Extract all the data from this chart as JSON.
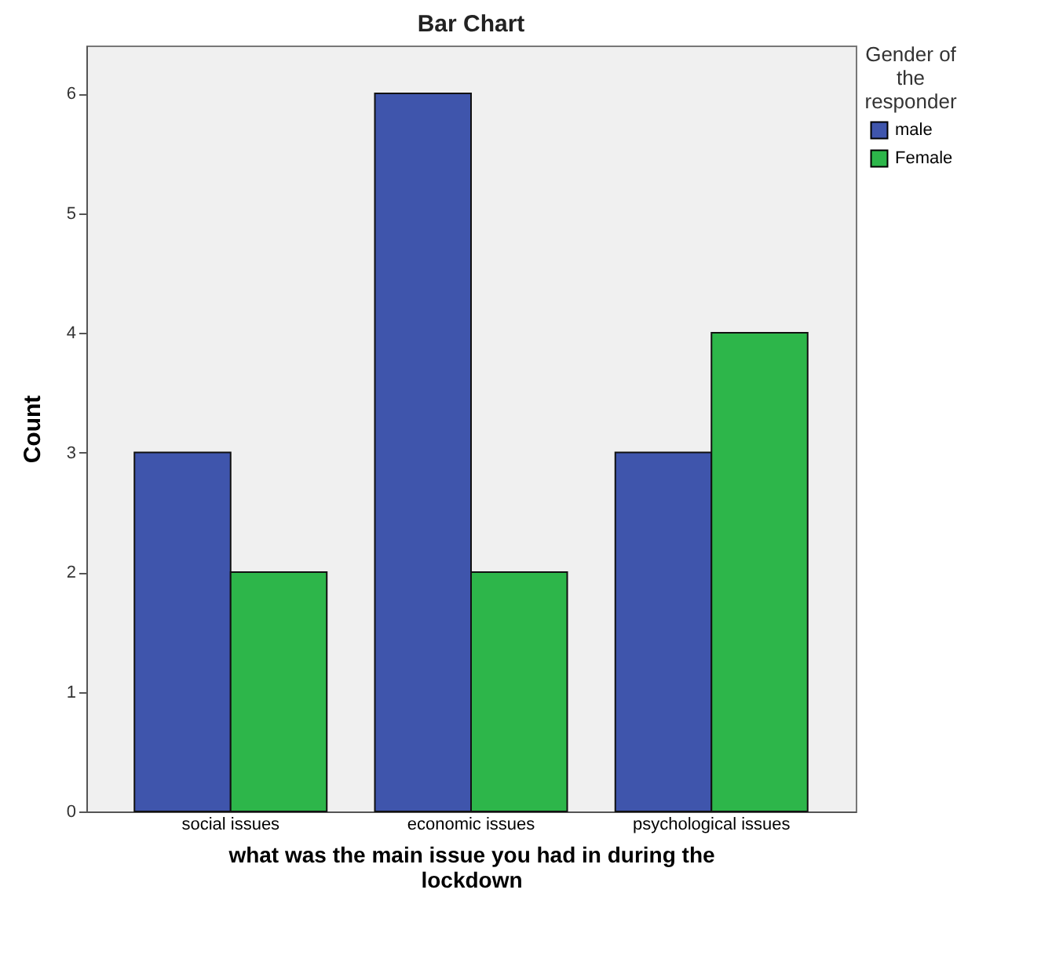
{
  "chart_data": {
    "type": "bar",
    "title": "Bar Chart",
    "xlabel": "what was the main issue you had in during the lockdown",
    "ylabel": "Count",
    "legend_title": "Gender of the responder",
    "categories": [
      "social issues",
      "economic issues",
      "psychological issues"
    ],
    "series": [
      {
        "name": "male",
        "color": "#3f55ac",
        "values": [
          3,
          6,
          3
        ]
      },
      {
        "name": "Female",
        "color": "#2db64a",
        "values": [
          2,
          2,
          4
        ]
      }
    ],
    "ylim": [
      0,
      6.4
    ],
    "yticks": [
      0,
      1,
      2,
      3,
      4,
      5,
      6
    ],
    "legend": "top right"
  }
}
